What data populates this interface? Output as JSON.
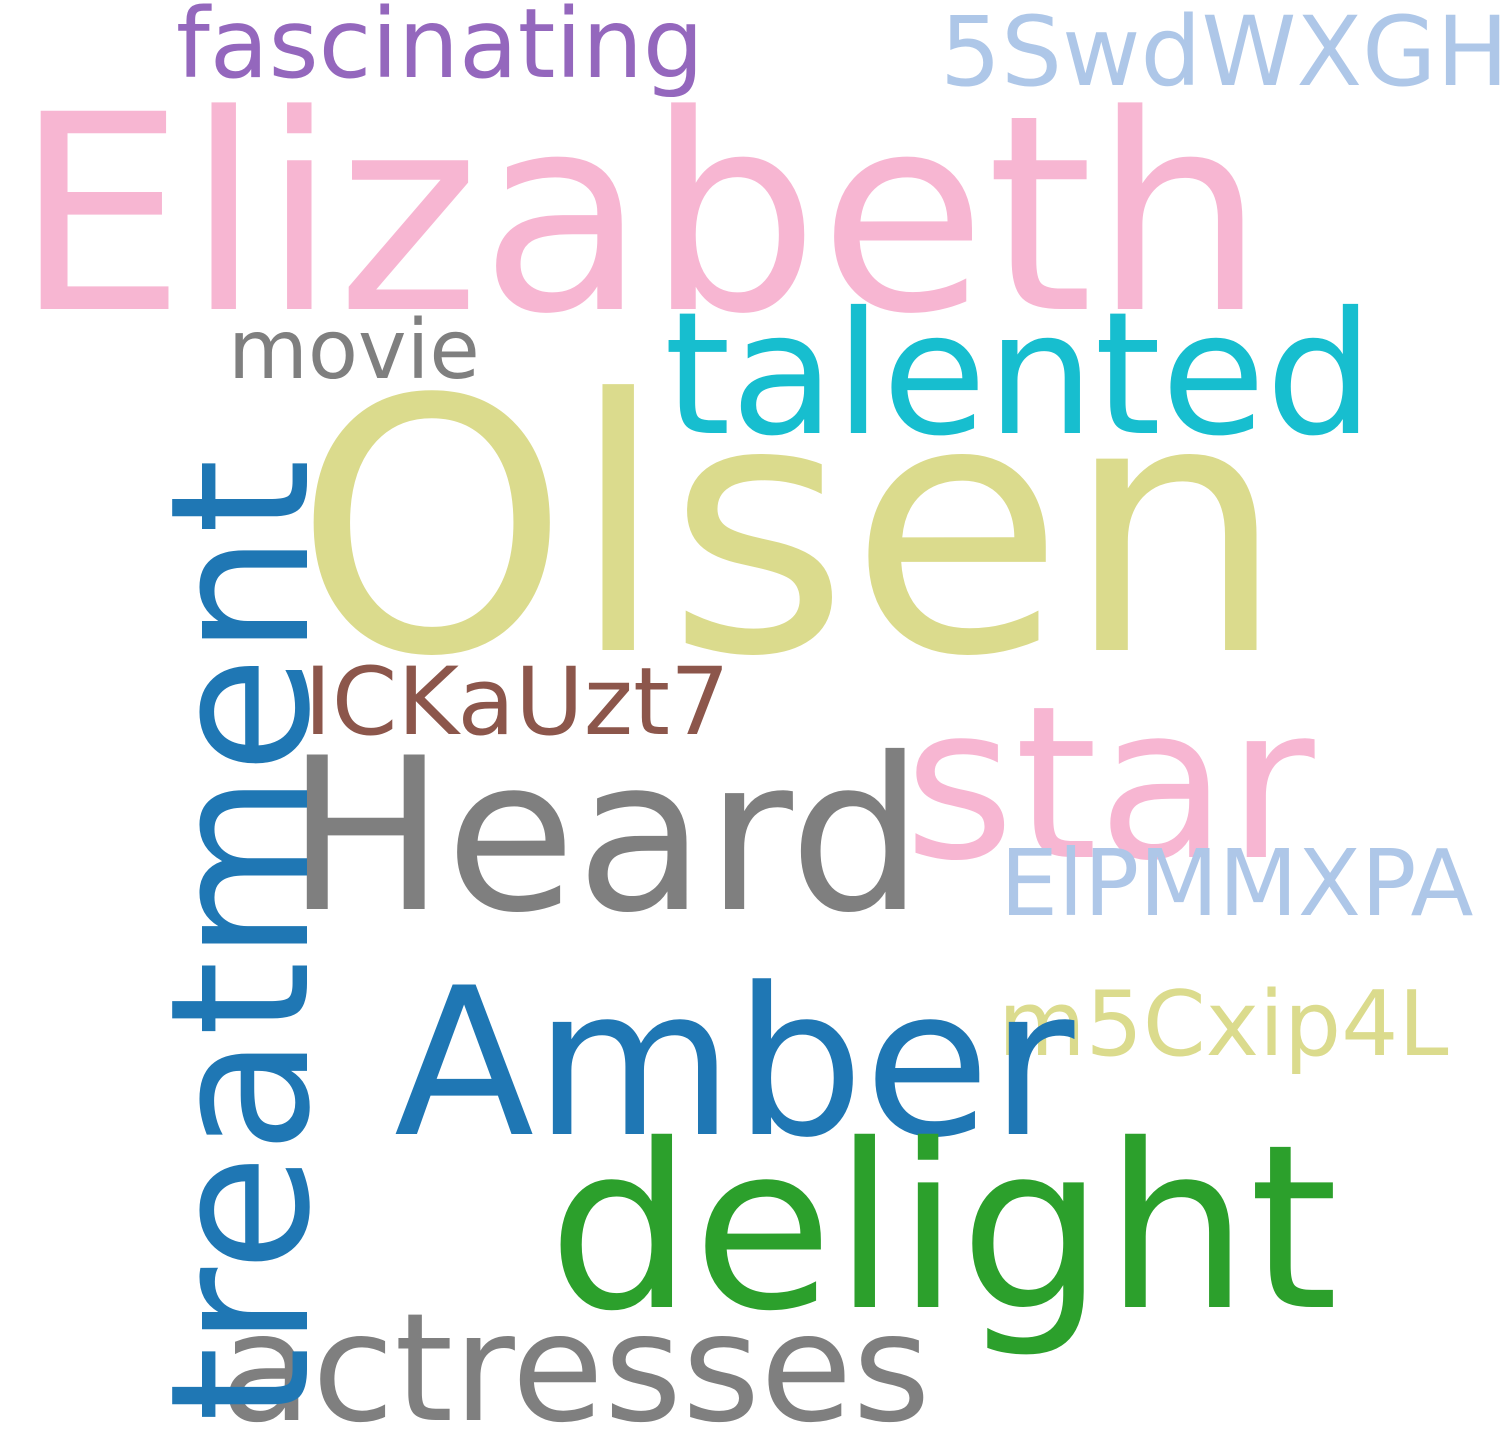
{
  "colors": {
    "pink": "#F7B6D2",
    "olive": "#DBDB8D",
    "gray": "#7F7F7F",
    "blue": "#1F77B4",
    "green": "#2CA02C",
    "cyan": "#17BECF",
    "purple": "#9467BD",
    "light_blue": "#AEC7E8",
    "brown": "#8C564B"
  },
  "words": {
    "elizabeth": "Elizabeth",
    "olsen": "Olsen",
    "heard": "Heard",
    "amber": "Amber",
    "delight": "delight",
    "star": "star",
    "talented": "talented",
    "treatment": "treatment",
    "actresses": "actresses",
    "fascinating": "fascinating",
    "code_5swd": "5SwdWXGH",
    "movie": "movie",
    "code_ickau": "ICKaUzt7",
    "code_elpmm": "ElPMMXPA",
    "code_m5cx": "m5Cxip4L"
  }
}
